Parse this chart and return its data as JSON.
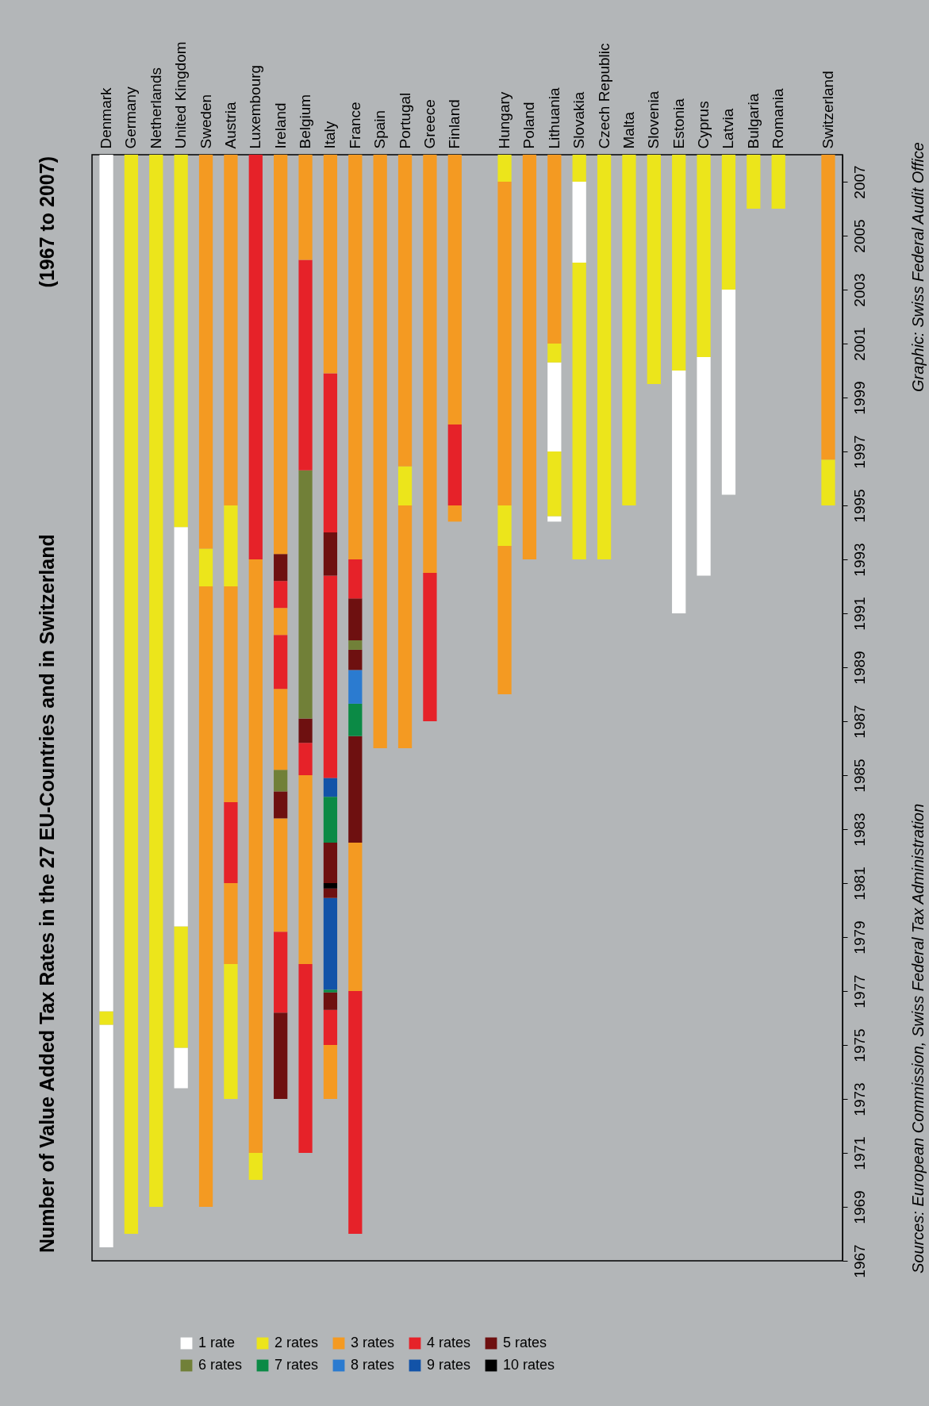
{
  "chart_data": {
    "type": "bar",
    "title": "Number of Value Added Tax Rates in the 27 EU-Countries and in Switzerland",
    "subtitle": "(1967 to 2007)",
    "annotations": [
      "Sources: European Commission, Swiss Federal Tax Administration",
      "Graphic: Swiss Federal Audit Office"
    ],
    "categories": [
      "Denmark",
      "Germany",
      "Netherlands",
      "United Kingdom",
      "Sweden",
      "Austria",
      "Luxembourg",
      "Ireland",
      "Belgium",
      "Italy",
      "France",
      "Spain",
      "Portugal",
      "Greece",
      "Finland",
      null,
      "Hungary",
      "Poland",
      "Lithuania",
      "Slovakia",
      "Czech Republic",
      "Malta",
      "Slovenia",
      "Estonia",
      "Cyprus",
      "Latvia",
      "Bulgaria",
      "Romania",
      null,
      "Switzerland"
    ],
    "ylim": [
      1967,
      2008
    ],
    "yticks": [
      1967,
      1969,
      1971,
      1973,
      1975,
      1977,
      1979,
      1981,
      1983,
      1985,
      1987,
      1989,
      1991,
      1993,
      1995,
      1997,
      1999,
      2001,
      2003,
      2005,
      2007
    ],
    "grid": false,
    "legend": "bottom left",
    "series": [
      {
        "base": [
          1967.5,
          1968,
          1969,
          1973.4,
          1969,
          1973,
          1970,
          1973,
          1971,
          1973,
          1968,
          1986,
          1986,
          1987,
          1994.4,
          null,
          1988,
          1993,
          1994.4,
          1993,
          1993,
          1995,
          1999.5,
          1991,
          1992.4,
          1995.4,
          2006,
          2006,
          null,
          1995
        ],
        "values": [
          8.25,
          40,
          39,
          1.5,
          23,
          5,
          1,
          3.2,
          7,
          2,
          9,
          22,
          9,
          5.5,
          0.6,
          null,
          5.5,
          15,
          0.2,
          11,
          15,
          13,
          8.5,
          9,
          8.1,
          7.6,
          2,
          2,
          null,
          1.7
        ],
        "colors": [
          "#ffffff",
          "#ece51b",
          "#ece51b",
          "#ffffff",
          "#f49a22",
          "#ece51b",
          "#ece51b",
          "#6e1010",
          "#e62229",
          "#f49a22",
          "#e62229",
          "#f49a22",
          "#f49a22",
          "#e62229",
          "#f49a22",
          null,
          "#f49a22",
          "#f49a22",
          "#ffffff",
          "#ece51b",
          "#ece51b",
          "#ece51b",
          "#ece51b",
          "#ffffff",
          "#ffffff",
          "#ffffff",
          "#ece51b",
          "#ece51b",
          null,
          "#ece51b"
        ]
      },
      {
        "base": [
          1975.75,
          null,
          null,
          1974.9,
          1992,
          1978,
          1971,
          1976.2,
          1978,
          1975,
          1977,
          null,
          1995,
          1992.5,
          1995,
          null,
          1993.5,
          null,
          1994.6,
          2004,
          null,
          null,
          null,
          2000,
          2000.5,
          2003,
          null,
          null,
          null,
          1996.7
        ],
        "values": [
          0.5,
          null,
          null,
          4.5,
          1.4,
          3,
          22,
          3,
          7,
          1.3,
          5.5,
          null,
          1.45,
          15.5,
          3,
          null,
          1.5,
          null,
          2.4,
          3,
          null,
          null,
          null,
          8,
          7.5,
          5,
          null,
          null,
          null,
          11.3
        ],
        "colors": [
          "#ece51b",
          null,
          null,
          "#ece51b",
          "#ece51b",
          "#f49a22",
          "#f49a22",
          "#e62229",
          "#f49a22",
          "#e62229",
          "#f49a22",
          null,
          "#ece51b",
          "#f49a22",
          "#e62229",
          null,
          "#ece51b",
          null,
          "#ece51b",
          "#ffffff",
          null,
          null,
          null,
          "#ece51b",
          "#ece51b",
          "#ece51b",
          null,
          null,
          null,
          "#f49a22"
        ]
      },
      {
        "base": [
          1976.25,
          null,
          null,
          1979.4,
          1993.4,
          1981,
          1993,
          1979.2,
          1985,
          1976.3,
          1982.5,
          null,
          1996.45,
          null,
          1998,
          null,
          1995,
          null,
          1997,
          2007,
          null,
          null,
          null,
          null,
          null,
          null,
          null,
          null,
          null,
          null
        ],
        "values": [
          31.75,
          null,
          null,
          14.8,
          14.6,
          3,
          15,
          4.2,
          1.2,
          0.65,
          3.95,
          null,
          11.55,
          null,
          10,
          null,
          12,
          null,
          3.3,
          1,
          null,
          null,
          null,
          null,
          null,
          null,
          null,
          null,
          null,
          null
        ],
        "colors": [
          "#ffffff",
          null,
          null,
          "#ffffff",
          "#f49a22",
          "#e62229",
          "#e62229",
          "#f49a22",
          "#e62229",
          "#6e1010",
          "#6e1010",
          null,
          "#f49a22",
          null,
          "#f49a22",
          null,
          "#f49a22",
          null,
          "#ffffff",
          "#ece51b",
          null,
          null,
          null,
          null,
          null,
          null,
          null,
          null,
          null,
          null
        ]
      },
      {
        "base": [
          null,
          null,
          null,
          1994.2,
          null,
          1984,
          null,
          1983.4,
          1986.2,
          1976.95,
          1986.45,
          null,
          null,
          null,
          null,
          null,
          2007,
          null,
          2000.3,
          null,
          null,
          null,
          null,
          null,
          null,
          null,
          null,
          null,
          null,
          null
        ],
        "values": [
          null,
          null,
          null,
          13.8,
          null,
          8,
          null,
          1,
          0.9,
          0.1,
          1.2,
          null,
          null,
          null,
          null,
          null,
          1,
          null,
          0.7,
          null,
          null,
          null,
          null,
          null,
          null,
          null,
          null,
          null,
          null,
          null
        ],
        "colors": [
          null,
          null,
          null,
          "#ece51b",
          null,
          "#f49a22",
          null,
          "#6e1010",
          "#6e1010",
          "#0b8a45",
          "#0b8a45",
          null,
          null,
          null,
          null,
          null,
          "#ece51b",
          null,
          "#ece51b",
          null,
          null,
          null,
          null,
          null,
          null,
          null,
          null,
          null,
          null,
          null
        ]
      },
      {
        "base": [
          null,
          null,
          null,
          null,
          null,
          1992,
          null,
          1984.4,
          1987.1,
          1977.05,
          1987.65,
          null,
          null,
          null,
          null,
          null,
          null,
          null,
          2001,
          null,
          null,
          null,
          null,
          null,
          null,
          null,
          null,
          null,
          null,
          null
        ],
        "values": [
          null,
          null,
          null,
          null,
          null,
          3,
          null,
          0.8,
          9.2,
          3.4,
          1.25,
          null,
          null,
          null,
          null,
          null,
          null,
          null,
          7,
          null,
          null,
          null,
          null,
          null,
          null,
          null,
          null,
          null,
          null,
          null
        ],
        "colors": [
          null,
          null,
          null,
          null,
          null,
          "#ece51b",
          null,
          "#718038",
          "#718038",
          "#1253a8",
          "#2b7bd0",
          null,
          null,
          null,
          null,
          null,
          null,
          null,
          "#f49a22",
          null,
          null,
          null,
          null,
          null,
          null,
          null,
          null,
          null,
          null,
          null
        ]
      },
      {
        "base": [
          null,
          null,
          null,
          null,
          null,
          1995,
          null,
          1985.2,
          1996.3,
          1980.45,
          1988.9,
          null,
          null,
          null,
          null,
          null,
          null,
          null,
          null,
          null,
          null,
          null,
          null,
          null,
          null,
          null,
          null,
          null,
          null,
          null
        ],
        "values": [
          null,
          null,
          null,
          null,
          null,
          13,
          null,
          3,
          7.8,
          0.35,
          0.75,
          null,
          null,
          null,
          null,
          null,
          null,
          null,
          null,
          null,
          null,
          null,
          null,
          null,
          null,
          null,
          null,
          null,
          null,
          null
        ],
        "colors": [
          null,
          null,
          null,
          null,
          null,
          "#f49a22",
          null,
          "#f49a22",
          "#e62229",
          "#6e1010",
          "#6e1010",
          null,
          null,
          null,
          null,
          null,
          null,
          null,
          null,
          null,
          null,
          null,
          null,
          null,
          null,
          null,
          null,
          null,
          null,
          null
        ]
      },
      {
        "base": [
          null,
          null,
          null,
          null,
          null,
          null,
          null,
          1988.2,
          2004.1,
          1980.8,
          1989.65,
          null,
          null,
          null,
          null,
          null,
          null,
          null,
          null,
          null,
          null,
          null,
          null,
          null,
          null,
          null,
          null,
          null,
          null,
          null
        ],
        "values": [
          null,
          null,
          null,
          null,
          null,
          null,
          null,
          2,
          3.9,
          0.2,
          0.35,
          null,
          null,
          null,
          null,
          null,
          null,
          null,
          null,
          null,
          null,
          null,
          null,
          null,
          null,
          null,
          null,
          null,
          null,
          null
        ],
        "colors": [
          null,
          null,
          null,
          null,
          null,
          null,
          null,
          "#e62229",
          "#f49a22",
          "#000000",
          "#718038",
          null,
          null,
          null,
          null,
          null,
          null,
          null,
          null,
          null,
          null,
          null,
          null,
          null,
          null,
          null,
          null,
          null,
          null,
          null
        ]
      },
      {
        "base": [
          null,
          null,
          null,
          null,
          null,
          null,
          null,
          1990.2,
          null,
          1981,
          1990,
          null,
          null,
          null,
          null,
          null,
          null,
          null,
          null,
          null,
          null,
          null,
          null,
          null,
          null,
          null,
          null,
          null,
          null,
          null
        ],
        "values": [
          null,
          null,
          null,
          null,
          null,
          null,
          null,
          1,
          null,
          1.5,
          1.55,
          null,
          null,
          null,
          null,
          null,
          null,
          null,
          null,
          null,
          null,
          null,
          null,
          null,
          null,
          null,
          null,
          null,
          null,
          null
        ],
        "colors": [
          null,
          null,
          null,
          null,
          null,
          null,
          null,
          "#f49a22",
          null,
          "#6e1010",
          "#6e1010",
          null,
          null,
          null,
          null,
          null,
          null,
          null,
          null,
          null,
          null,
          null,
          null,
          null,
          null,
          null,
          null,
          null,
          null,
          null
        ]
      },
      {
        "base": [
          null,
          null,
          null,
          null,
          null,
          null,
          null,
          1991.2,
          null,
          1982.5,
          1991.55,
          null,
          null,
          null,
          null,
          null,
          null,
          null,
          null,
          null,
          null,
          null,
          null,
          null,
          null,
          null,
          null,
          null,
          null,
          null
        ],
        "values": [
          null,
          null,
          null,
          null,
          null,
          null,
          null,
          1,
          null,
          1.7,
          1.45,
          null,
          null,
          null,
          null,
          null,
          null,
          null,
          null,
          null,
          null,
          null,
          null,
          null,
          null,
          null,
          null,
          null,
          null,
          null
        ],
        "colors": [
          null,
          null,
          null,
          null,
          null,
          null,
          null,
          "#e62229",
          null,
          "#0b8a45",
          "#e62229",
          null,
          null,
          null,
          null,
          null,
          null,
          null,
          null,
          null,
          null,
          null,
          null,
          null,
          null,
          null,
          null,
          null,
          null,
          null
        ]
      },
      {
        "base": [
          null,
          null,
          null,
          null,
          null,
          null,
          null,
          1992.2,
          null,
          1984.2,
          1993,
          null,
          null,
          null,
          null,
          null,
          null,
          null,
          null,
          null,
          null,
          null,
          null,
          null,
          null,
          null,
          null,
          null,
          null,
          null
        ],
        "values": [
          null,
          null,
          null,
          null,
          null,
          null,
          null,
          1,
          null,
          0.7,
          15,
          null,
          null,
          null,
          null,
          null,
          null,
          null,
          null,
          null,
          null,
          null,
          null,
          null,
          null,
          null,
          null,
          null,
          null,
          null
        ],
        "colors": [
          null,
          null,
          null,
          null,
          null,
          null,
          null,
          "#6e1010",
          null,
          "#1253a8",
          "#f49a22",
          null,
          null,
          null,
          null,
          null,
          null,
          null,
          null,
          null,
          null,
          null,
          null,
          null,
          null,
          null,
          null,
          null,
          null,
          null
        ]
      },
      {
        "base": [
          null,
          null,
          null,
          null,
          null,
          null,
          null,
          1993.2,
          null,
          1984.9,
          null,
          null,
          null,
          null,
          null,
          null,
          null,
          null,
          null,
          null,
          null,
          null,
          null,
          null,
          null,
          null,
          null,
          null,
          null,
          null
        ],
        "values": [
          null,
          null,
          null,
          null,
          null,
          null,
          null,
          14.8,
          null,
          7.5,
          null,
          null,
          null,
          null,
          null,
          null,
          null,
          null,
          null,
          null,
          null,
          null,
          null,
          null,
          null,
          null,
          null,
          null,
          null,
          null
        ],
        "colors": [
          null,
          null,
          null,
          null,
          null,
          null,
          null,
          "#f49a22",
          null,
          "#e62229",
          null,
          null,
          null,
          null,
          null,
          null,
          null,
          null,
          null,
          null,
          null,
          null,
          null,
          null,
          null,
          null,
          null,
          null,
          null,
          null
        ]
      },
      {
        "base": [
          null,
          null,
          null,
          null,
          null,
          null,
          null,
          null,
          null,
          1992.4,
          null,
          null,
          null,
          null,
          null,
          null,
          null,
          null,
          null,
          null,
          null,
          null,
          null,
          null,
          null,
          null,
          null,
          null,
          null,
          null
        ],
        "values": [
          null,
          null,
          null,
          null,
          null,
          null,
          null,
          null,
          null,
          1.6,
          null,
          null,
          null,
          null,
          null,
          null,
          null,
          null,
          null,
          null,
          null,
          null,
          null,
          null,
          null,
          null,
          null,
          null,
          null,
          null
        ],
        "colors": [
          null,
          null,
          null,
          null,
          null,
          null,
          null,
          null,
          null,
          "#6e1010",
          null,
          null,
          null,
          null,
          null,
          null,
          null,
          null,
          null,
          null,
          null,
          null,
          null,
          null,
          null,
          null,
          null,
          null,
          null,
          null
        ]
      },
      {
        "base": [
          null,
          null,
          null,
          null,
          null,
          null,
          null,
          null,
          null,
          1994,
          null,
          null,
          null,
          null,
          null,
          null,
          null,
          null,
          null,
          null,
          null,
          null,
          null,
          null,
          null,
          null,
          null,
          null,
          null,
          null
        ],
        "values": [
          null,
          null,
          null,
          null,
          null,
          null,
          null,
          null,
          null,
          5.9,
          null,
          null,
          null,
          null,
          null,
          null,
          null,
          null,
          null,
          null,
          null,
          null,
          null,
          null,
          null,
          null,
          null,
          null,
          null,
          null
        ],
        "colors": [
          null,
          null,
          null,
          null,
          null,
          null,
          null,
          null,
          null,
          "#e62229",
          null,
          null,
          null,
          null,
          null,
          null,
          null,
          null,
          null,
          null,
          null,
          null,
          null,
          null,
          null,
          null,
          null,
          null,
          null,
          null
        ]
      },
      {
        "base": [
          null,
          null,
          null,
          null,
          null,
          null,
          null,
          null,
          null,
          1999.9,
          null,
          null,
          null,
          null,
          null,
          null,
          null,
          null,
          null,
          null,
          null,
          null,
          null,
          null,
          null,
          null,
          null,
          null,
          null,
          null
        ],
        "values": [
          null,
          null,
          null,
          null,
          null,
          null,
          null,
          null,
          null,
          8.1,
          null,
          null,
          null,
          null,
          null,
          null,
          null,
          null,
          null,
          null,
          null,
          null,
          null,
          null,
          null,
          null,
          null,
          null,
          null,
          null
        ],
        "colors": [
          null,
          null,
          null,
          null,
          null,
          null,
          null,
          null,
          null,
          "#f49a22",
          null,
          null,
          null,
          null,
          null,
          null,
          null,
          null,
          null,
          null,
          null,
          null,
          null,
          null,
          null,
          null,
          null,
          null,
          null,
          null
        ]
      },
      {
        "name": "1 rate",
        "color": "#ffffff",
        "values": [
          null,
          null,
          null,
          null,
          null,
          null,
          null,
          null,
          null,
          null,
          null,
          null,
          null,
          null,
          null,
          null,
          null,
          null,
          null,
          null,
          null,
          null,
          null,
          null,
          null,
          null,
          null,
          null,
          null,
          null
        ]
      },
      {
        "name": "2 rates",
        "color": "#ece51b",
        "values": [
          null,
          null,
          null,
          null,
          null,
          null,
          null,
          null,
          null,
          null,
          null,
          null,
          null,
          null,
          null,
          null,
          null,
          null,
          null,
          null,
          null,
          null,
          null,
          null,
          null,
          null,
          null,
          null,
          null,
          null
        ]
      },
      {
        "name": "3 rates",
        "color": "#f49a22",
        "values": [
          null,
          null,
          null,
          null,
          null,
          null,
          null,
          null,
          null,
          null,
          null,
          null,
          null,
          null,
          null,
          null,
          null,
          null,
          null,
          null,
          null,
          null,
          null,
          null,
          null,
          null,
          null,
          null,
          null,
          null
        ]
      },
      {
        "name": "4 rates",
        "color": "#e62229",
        "values": [
          null,
          null,
          null,
          null,
          null,
          null,
          null,
          null,
          null,
          null,
          null,
          null,
          null,
          null,
          null,
          null,
          null,
          null,
          null,
          null,
          null,
          null,
          null,
          null,
          null,
          null,
          null,
          null,
          null,
          null
        ]
      },
      {
        "name": "5 rates",
        "color": "#6e1010",
        "values": [
          null,
          null,
          null,
          null,
          null,
          null,
          null,
          null,
          null,
          null,
          null,
          null,
          null,
          null,
          null,
          null,
          null,
          null,
          null,
          null,
          null,
          null,
          null,
          null,
          null,
          null,
          null,
          null,
          null,
          null
        ]
      },
      {
        "name": "6 rates",
        "color": "#718038",
        "values": [
          null,
          null,
          null,
          null,
          null,
          null,
          null,
          null,
          null,
          null,
          null,
          null,
          null,
          null,
          null,
          null,
          null,
          null,
          null,
          null,
          null,
          null,
          null,
          null,
          null,
          null,
          null,
          null,
          null,
          null
        ]
      },
      {
        "name": "7 rates",
        "color": "#0b8a45",
        "values": [
          null,
          null,
          null,
          null,
          null,
          null,
          null,
          null,
          null,
          null,
          null,
          null,
          null,
          null,
          null,
          null,
          null,
          null,
          null,
          null,
          null,
          null,
          null,
          null,
          null,
          null,
          null,
          null,
          null,
          null
        ]
      },
      {
        "name": "8 rates",
        "color": "#2b7bd0",
        "values": [
          null,
          null,
          null,
          null,
          null,
          null,
          null,
          null,
          null,
          null,
          null,
          null,
          null,
          null,
          null,
          null,
          null,
          null,
          null,
          null,
          null,
          null,
          null,
          null,
          null,
          null,
          null,
          null,
          null,
          null
        ]
      },
      {
        "name": "9 rates",
        "color": "#1253a8",
        "values": [
          null,
          null,
          null,
          null,
          null,
          null,
          null,
          null,
          null,
          null,
          null,
          null,
          null,
          null,
          null,
          null,
          null,
          null,
          null,
          null,
          null,
          null,
          null,
          null,
          null,
          null,
          null,
          null,
          null,
          null
        ]
      },
      {
        "name": "10 rates",
        "color": "#000000",
        "values": [
          null,
          null,
          null,
          null,
          null,
          null,
          null,
          null,
          null,
          null,
          null,
          null,
          null,
          null,
          null,
          null,
          null,
          null,
          null,
          null,
          null,
          null,
          null,
          null,
          null,
          null,
          null,
          null,
          null,
          null
        ]
      }
    ]
  }
}
